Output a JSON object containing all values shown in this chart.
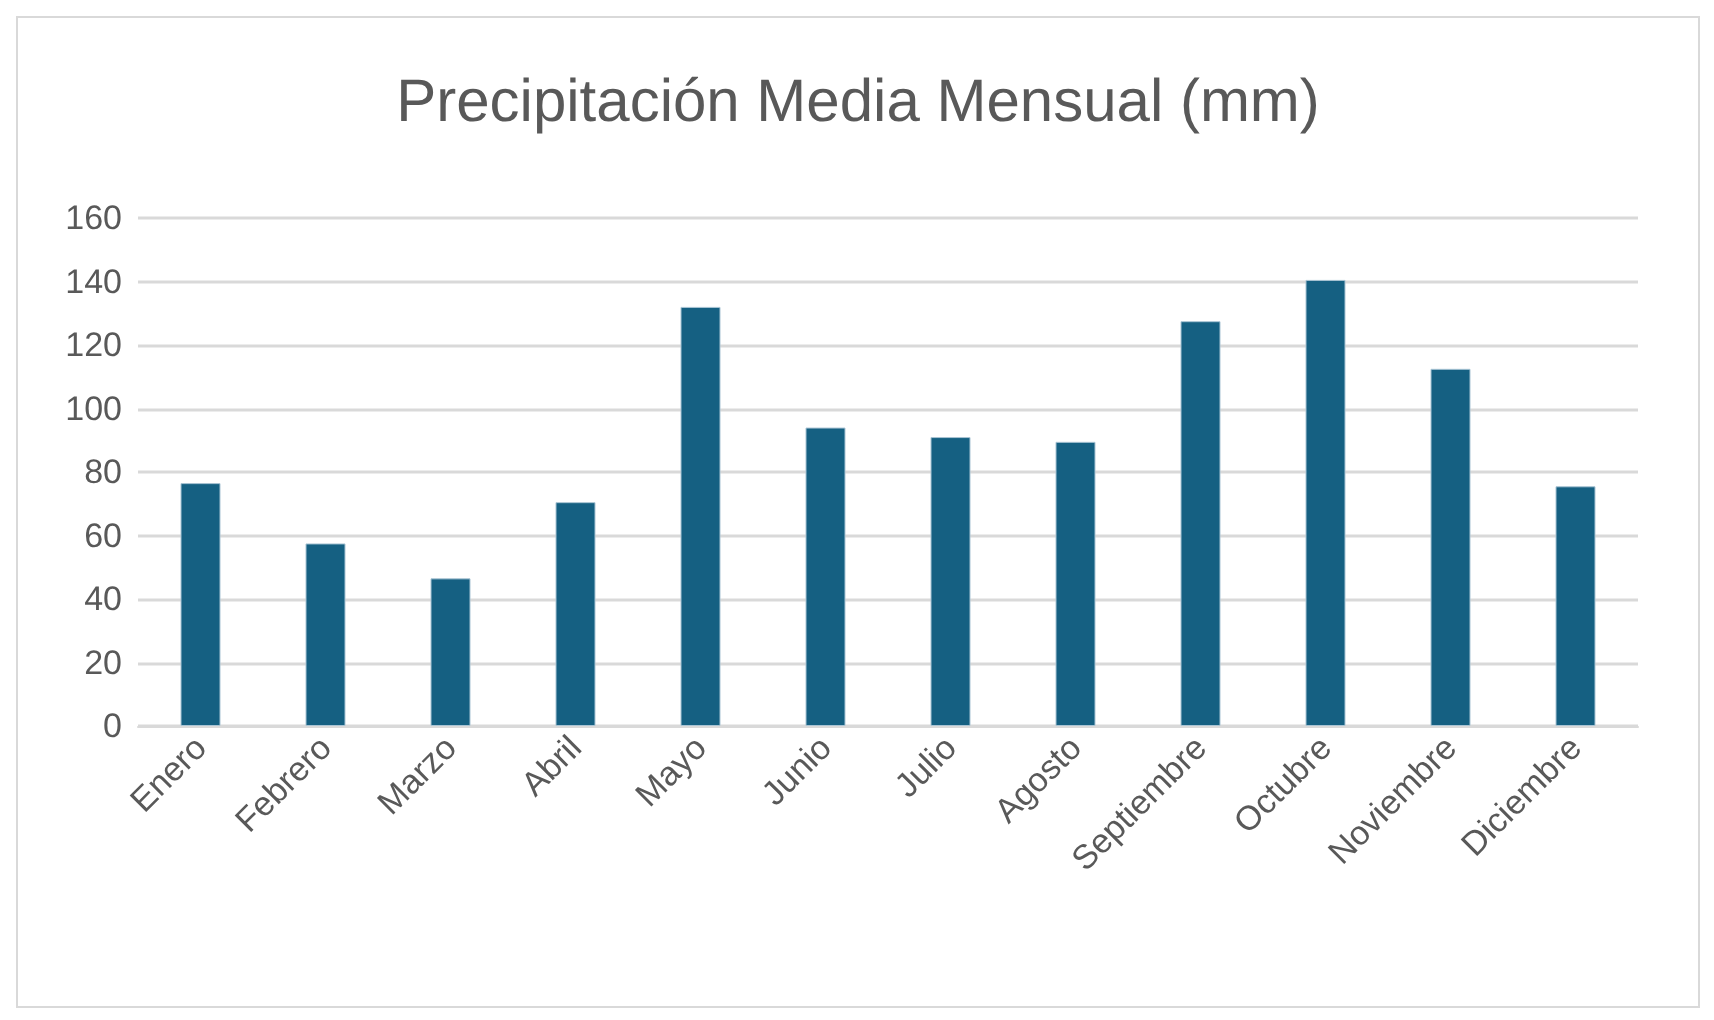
{
  "chart_data": {
    "type": "bar",
    "title": "Precipitación Media Mensual (mm)",
    "categories": [
      "Enero",
      "Febrero",
      "Marzo",
      "Abril",
      "Mayo",
      "Junio",
      "Julio",
      "Agosto",
      "Septiembre",
      "Octubre",
      "Noviembre",
      "Diciembre"
    ],
    "values": [
      76.5,
      57.5,
      46.5,
      70.5,
      132,
      94,
      91,
      89.5,
      127.5,
      140.5,
      112.5,
      75.5
    ],
    "color": "#156082",
    "ylim": [
      0,
      160
    ],
    "yticks": [
      0,
      20,
      40,
      60,
      80,
      100,
      120,
      140,
      160
    ],
    "grid": "y"
  }
}
